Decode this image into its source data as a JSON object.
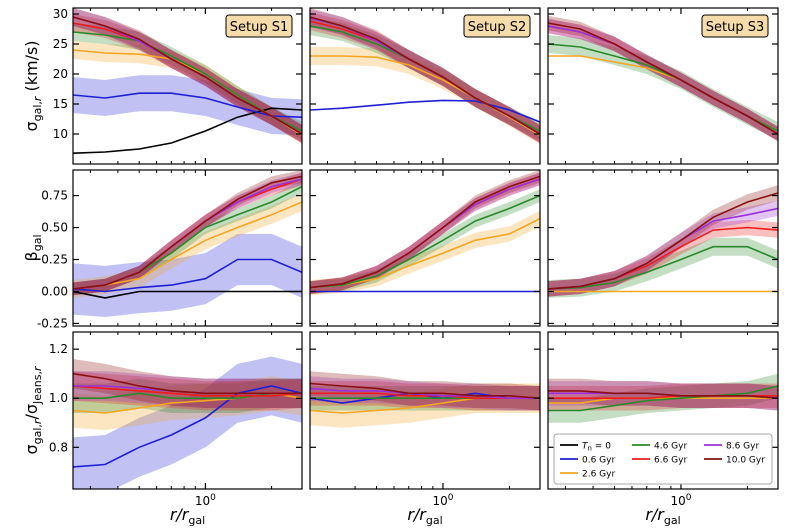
{
  "chart_data": {
    "type": "line",
    "setups": [
      "Setup S1",
      "Setup S2",
      "Setup S3"
    ],
    "xlabel": "r/r_gal",
    "xscale": "log",
    "xlim": [
      0.25,
      2.75
    ],
    "xticks": [
      {
        "value": 1.0,
        "label": "10^0"
      }
    ],
    "x": [
      0.25,
      0.35,
      0.5,
      0.7,
      1.0,
      1.4,
      2.0,
      2.75
    ],
    "rows": [
      {
        "ylabel": "σ_gal,r (km/s)",
        "ylim": [
          5,
          31
        ],
        "yticks": [
          10,
          15,
          20,
          25,
          30
        ],
        "panels": [
          {
            "series": [
              {
                "name": "T_n = 0",
                "values": [
                  6.8,
                  7.0,
                  7.5,
                  8.5,
                  10.5,
                  12.8,
                  14.3,
                  14.0
                ]
              },
              {
                "name": "0.6 Gyr",
                "values": [
                  16.5,
                  16.0,
                  16.8,
                  16.8,
                  16.0,
                  14.5,
                  13.0,
                  12.8
                ],
                "band": 3.0
              },
              {
                "name": "2.6 Gyr",
                "values": [
                  24.0,
                  23.5,
                  23.3,
                  22.5,
                  20.0,
                  16.5,
                  13.0,
                  9.8
                ],
                "band": 1.5
              },
              {
                "name": "4.6 Gyr",
                "values": [
                  27.0,
                  26.5,
                  25.5,
                  23.0,
                  20.0,
                  16.5,
                  13.0,
                  10.5
                ],
                "band": 1.5
              },
              {
                "name": "6.6 Gyr",
                "values": [
                  28.5,
                  27.5,
                  25.5,
                  22.5,
                  19.5,
                  16.0,
                  13.0,
                  10.0
                ],
                "band": 1.5
              },
              {
                "name": "8.6 Gyr",
                "values": [
                  29.5,
                  28.0,
                  25.5,
                  22.5,
                  19.5,
                  16.0,
                  13.0,
                  10.0
                ],
                "band": 1.5
              },
              {
                "name": "10.0 Gyr",
                "values": [
                  29.5,
                  28.0,
                  25.8,
                  22.5,
                  19.5,
                  16.0,
                  13.0,
                  10.0
                ],
                "band": 1.5
              }
            ]
          },
          {
            "series": [
              {
                "name": "0.6 Gyr",
                "values": [
                  14.0,
                  14.3,
                  14.8,
                  15.3,
                  15.6,
                  15.5,
                  14.0,
                  12.0
                ]
              },
              {
                "name": "2.6 Gyr",
                "values": [
                  23.0,
                  23.0,
                  22.8,
                  21.5,
                  19.0,
                  16.0,
                  12.8,
                  9.8
                ],
                "band": 1.5
              },
              {
                "name": "4.6 Gyr",
                "values": [
                  28.0,
                  27.0,
                  25.0,
                  22.5,
                  19.5,
                  16.0,
                  13.0,
                  10.5
                ],
                "band": 1.5
              },
              {
                "name": "6.6 Gyr",
                "values": [
                  28.8,
                  27.5,
                  25.5,
                  22.5,
                  19.5,
                  16.0,
                  13.0,
                  10.0
                ],
                "band": 1.5
              },
              {
                "name": "8.6 Gyr",
                "values": [
                  29.3,
                  28.0,
                  25.5,
                  22.5,
                  19.5,
                  16.0,
                  13.0,
                  10.0
                ],
                "band": 1.5
              },
              {
                "name": "10.0 Gyr",
                "values": [
                  29.5,
                  28.0,
                  25.8,
                  22.5,
                  19.5,
                  16.0,
                  13.0,
                  10.0
                ],
                "band": 1.5
              }
            ]
          },
          {
            "series": [
              {
                "name": "2.6 Gyr",
                "values": [
                  23.0,
                  23.0,
                  22.0,
                  21.0,
                  19.0,
                  16.0,
                  13.0,
                  10.5
                ]
              },
              {
                "name": "4.6 Gyr",
                "values": [
                  25.0,
                  24.5,
                  23.0,
                  21.5,
                  19.0,
                  16.0,
                  13.0,
                  10.5
                ],
                "band": 1.5
              },
              {
                "name": "6.6 Gyr",
                "values": [
                  28.0,
                  27.0,
                  25.0,
                  22.0,
                  19.0,
                  16.0,
                  13.0,
                  10.0
                ],
                "band": 1.2
              },
              {
                "name": "8.6 Gyr",
                "values": [
                  28.0,
                  27.0,
                  25.0,
                  22.0,
                  19.0,
                  16.0,
                  13.0,
                  10.0
                ],
                "band": 1.2
              },
              {
                "name": "10.0 Gyr",
                "values": [
                  28.5,
                  27.5,
                  25.0,
                  22.0,
                  19.0,
                  16.0,
                  13.0,
                  10.0
                ],
                "band": 1.2
              }
            ]
          }
        ]
      },
      {
        "ylabel": "β_gal",
        "ylim": [
          -0.27,
          0.95
        ],
        "yticks": [
          -0.25,
          0.0,
          0.25,
          0.5,
          0.75
        ],
        "panels": [
          {
            "series": [
              {
                "name": "T_n = 0",
                "values": [
                  0.0,
                  -0.05,
                  0.0,
                  0.0,
                  0.0,
                  0.0,
                  0.0,
                  0.0
                ]
              },
              {
                "name": "0.6 Gyr",
                "values": [
                  0.02,
                  0.0,
                  0.03,
                  0.05,
                  0.1,
                  0.25,
                  0.25,
                  0.15
                ],
                "band": 0.2
              },
              {
                "name": "2.6 Gyr",
                "values": [
                  0.02,
                  0.05,
                  0.1,
                  0.25,
                  0.4,
                  0.5,
                  0.6,
                  0.7
                ],
                "band": 0.07
              },
              {
                "name": "4.6 Gyr",
                "values": [
                  0.02,
                  0.05,
                  0.15,
                  0.3,
                  0.5,
                  0.6,
                  0.7,
                  0.82
                ],
                "band": 0.05
              },
              {
                "name": "6.6 Gyr",
                "values": [
                  0.02,
                  0.05,
                  0.15,
                  0.35,
                  0.55,
                  0.7,
                  0.8,
                  0.88
                ],
                "band": 0.05
              },
              {
                "name": "8.6 Gyr",
                "values": [
                  0.02,
                  0.05,
                  0.15,
                  0.35,
                  0.55,
                  0.7,
                  0.82,
                  0.88
                ],
                "band": 0.05
              },
              {
                "name": "10.0 Gyr",
                "values": [
                  0.02,
                  0.05,
                  0.15,
                  0.35,
                  0.55,
                  0.72,
                  0.85,
                  0.9
                ],
                "band": 0.05
              }
            ]
          },
          {
            "series": [
              {
                "name": "0.6 Gyr",
                "values": [
                  0.0,
                  0.0,
                  0.0,
                  0.0,
                  0.0,
                  0.0,
                  0.0,
                  0.0
                ]
              },
              {
                "name": "2.6 Gyr",
                "values": [
                  0.03,
                  0.05,
                  0.1,
                  0.2,
                  0.3,
                  0.4,
                  0.45,
                  0.57
                ],
                "band": 0.06
              },
              {
                "name": "4.6 Gyr",
                "values": [
                  0.03,
                  0.05,
                  0.12,
                  0.25,
                  0.4,
                  0.55,
                  0.65,
                  0.75
                ],
                "band": 0.05
              },
              {
                "name": "6.6 Gyr",
                "values": [
                  0.03,
                  0.06,
                  0.15,
                  0.3,
                  0.5,
                  0.68,
                  0.8,
                  0.88
                ],
                "band": 0.05
              },
              {
                "name": "8.6 Gyr",
                "values": [
                  0.03,
                  0.06,
                  0.15,
                  0.3,
                  0.5,
                  0.68,
                  0.8,
                  0.88
                ],
                "band": 0.05
              },
              {
                "name": "10.0 Gyr",
                "values": [
                  0.03,
                  0.06,
                  0.15,
                  0.3,
                  0.5,
                  0.7,
                  0.82,
                  0.9
                ],
                "band": 0.05
              }
            ]
          },
          {
            "series": [
              {
                "name": "2.6 Gyr",
                "values": [
                  0.0,
                  0.0,
                  0.0,
                  0.0,
                  0.0,
                  0.0,
                  0.0,
                  0.0
                ]
              },
              {
                "name": "4.6 Gyr",
                "values": [
                  0.02,
                  0.03,
                  0.07,
                  0.15,
                  0.25,
                  0.35,
                  0.35,
                  0.25
                ],
                "band": 0.07
              },
              {
                "name": "6.6 Gyr",
                "values": [
                  0.02,
                  0.04,
                  0.1,
                  0.2,
                  0.35,
                  0.48,
                  0.5,
                  0.48
                ],
                "band": 0.06
              },
              {
                "name": "8.6 Gyr",
                "values": [
                  0.02,
                  0.04,
                  0.1,
                  0.22,
                  0.4,
                  0.55,
                  0.6,
                  0.65
                ],
                "band": 0.06
              },
              {
                "name": "10.0 Gyr",
                "values": [
                  0.02,
                  0.04,
                  0.1,
                  0.22,
                  0.4,
                  0.58,
                  0.7,
                  0.77
                ],
                "band": 0.06
              }
            ]
          }
        ]
      },
      {
        "ylabel": "σ_gal,r/σ_Jeans,r",
        "ylim": [
          0.63,
          1.27
        ],
        "yticks": [
          0.8,
          1.0,
          1.2
        ],
        "panels": [
          {
            "series": [
              {
                "name": "0.6 Gyr",
                "values": [
                  0.72,
                  0.73,
                  0.8,
                  0.85,
                  0.92,
                  1.02,
                  1.05,
                  1.02
                ],
                "band": 0.12
              },
              {
                "name": "2.6 Gyr",
                "values": [
                  0.95,
                  0.94,
                  0.96,
                  0.98,
                  0.99,
                  1.0,
                  1.02,
                  1.0
                ],
                "band": 0.07
              },
              {
                "name": "4.6 Gyr",
                "values": [
                  1.0,
                  1.0,
                  1.02,
                  1.0,
                  1.0,
                  1.0,
                  1.02,
                  1.02
                ],
                "band": 0.06
              },
              {
                "name": "6.6 Gyr",
                "values": [
                  1.05,
                  1.04,
                  1.03,
                  1.02,
                  1.01,
                  1.01,
                  1.01,
                  1.02
                ],
                "band": 0.06
              },
              {
                "name": "8.6 Gyr",
                "values": [
                  1.05,
                  1.05,
                  1.04,
                  1.03,
                  1.02,
                  1.02,
                  1.02,
                  1.02
                ],
                "band": 0.06
              },
              {
                "name": "10.0 Gyr",
                "values": [
                  1.1,
                  1.08,
                  1.05,
                  1.03,
                  1.02,
                  1.02,
                  1.02,
                  1.02
                ],
                "band": 0.06
              }
            ]
          },
          {
            "series": [
              {
                "name": "0.6 Gyr",
                "values": [
                  1.0,
                  0.98,
                  1.0,
                  1.02,
                  1.0,
                  1.02,
                  1.0,
                  1.0
                ]
              },
              {
                "name": "2.6 Gyr",
                "values": [
                  0.95,
                  0.94,
                  0.95,
                  0.96,
                  0.98,
                  1.0,
                  1.0,
                  1.0
                ],
                "band": 0.06
              },
              {
                "name": "4.6 Gyr",
                "values": [
                  1.0,
                  1.0,
                  1.0,
                  1.0,
                  1.0,
                  1.0,
                  1.0,
                  1.0
                ],
                "band": 0.05
              },
              {
                "name": "6.6 Gyr",
                "values": [
                  1.02,
                  1.02,
                  1.02,
                  1.01,
                  1.01,
                  1.0,
                  1.0,
                  1.0
                ],
                "band": 0.05
              },
              {
                "name": "8.6 Gyr",
                "values": [
                  1.04,
                  1.03,
                  1.03,
                  1.02,
                  1.01,
                  1.01,
                  1.0,
                  1.0
                ],
                "band": 0.05
              },
              {
                "name": "10.0 Gyr",
                "values": [
                  1.06,
                  1.05,
                  1.04,
                  1.02,
                  1.02,
                  1.01,
                  1.01,
                  1.0
                ],
                "band": 0.05
              }
            ]
          },
          {
            "series": [
              {
                "name": "2.6 Gyr",
                "values": [
                  0.98,
                  0.98,
                  1.0,
                  1.0,
                  1.0,
                  1.0,
                  1.0,
                  1.0
                ]
              },
              {
                "name": "4.6 Gyr",
                "values": [
                  0.95,
                  0.95,
                  0.97,
                  0.99,
                  1.0,
                  1.01,
                  1.02,
                  1.05
                ],
                "band": 0.05
              },
              {
                "name": "6.6 Gyr",
                "values": [
                  1.0,
                  1.0,
                  1.0,
                  1.0,
                  1.01,
                  1.01,
                  1.01,
                  1.01
                ],
                "band": 0.05
              },
              {
                "name": "8.6 Gyr",
                "values": [
                  1.02,
                  1.02,
                  1.02,
                  1.02,
                  1.01,
                  1.01,
                  1.01,
                  1.0
                ],
                "band": 0.05
              },
              {
                "name": "10.0 Gyr",
                "values": [
                  1.03,
                  1.03,
                  1.02,
                  1.02,
                  1.01,
                  1.01,
                  1.01,
                  1.0
                ],
                "band": 0.05
              }
            ]
          }
        ]
      }
    ],
    "legend": {
      "placement": "lower-right of bottom-right panel",
      "entries": [
        "T_n = 0",
        "0.6 Gyr",
        "2.6 Gyr",
        "4.6 Gyr",
        "6.6 Gyr",
        "8.6 Gyr",
        "10.0 Gyr"
      ]
    },
    "colors": {
      "T_n = 0": "#000000",
      "0.6 Gyr": "#1f1fd6",
      "2.6 Gyr": "#f5a623",
      "4.6 Gyr": "#2a8a2a",
      "6.6 Gyr": "#ee1c1c",
      "8.6 Gyr": "#9b30d9",
      "10.0 Gyr": "#8b1010"
    },
    "setup_box_color": "#f5dcaa"
  }
}
